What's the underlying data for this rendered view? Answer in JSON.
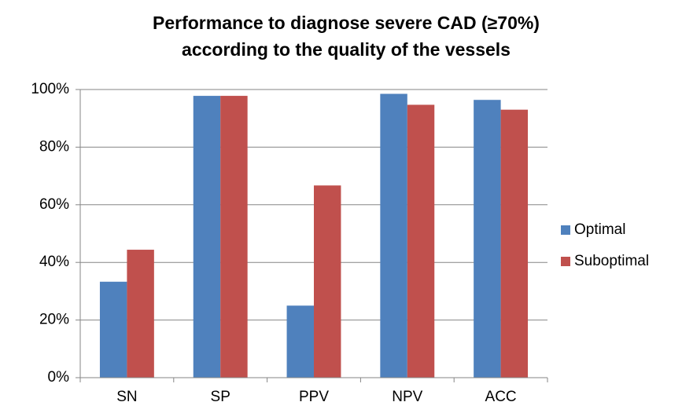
{
  "chart_data": {
    "type": "bar",
    "title": [
      "Performance to diagnose severe CAD (≥70%)",
      "according to the quality of the vessels"
    ],
    "categories": [
      "SN",
      "SP",
      "PPV",
      "NPV",
      "ACC"
    ],
    "series": [
      {
        "name": "Optimal",
        "color": "#4f81bd",
        "values": [
          33.3,
          97.8,
          25,
          98.5,
          96.4
        ]
      },
      {
        "name": "Suboptimal",
        "color": "#c0504d",
        "values": [
          44.4,
          97.8,
          66.7,
          94.7,
          93.0
        ]
      }
    ],
    "ylim": [
      0,
      100
    ],
    "yticks": [
      {
        "value": 0,
        "label": "0%"
      },
      {
        "value": 20,
        "label": "20%"
      },
      {
        "value": 40,
        "label": "40%"
      },
      {
        "value": 60,
        "label": "60%"
      },
      {
        "value": 80,
        "label": "80%"
      },
      {
        "value": 100,
        "label": "100%"
      }
    ],
    "grid": true,
    "legend": "right"
  }
}
